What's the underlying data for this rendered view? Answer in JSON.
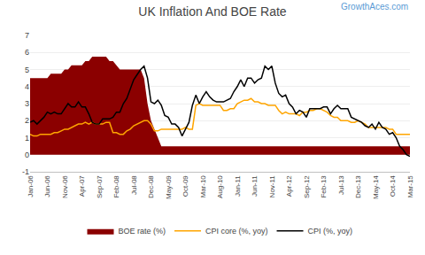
{
  "chart_data": {
    "type": "line",
    "title": "UK Inflation And BOE Rate",
    "annotations": [
      "GrowthAces.com"
    ],
    "categories": [
      "Jan-06",
      null,
      null,
      null,
      null,
      "Jun-06",
      null,
      null,
      null,
      null,
      "Nov-06",
      null,
      null,
      null,
      null,
      "Apr-07",
      null,
      null,
      null,
      null,
      "Sep-07",
      null,
      null,
      null,
      null,
      "Feb-08",
      null,
      null,
      null,
      null,
      "Jul-08",
      null,
      null,
      null,
      null,
      "Dec-08",
      null,
      null,
      null,
      null,
      "May-09",
      null,
      null,
      null,
      null,
      "Oct-09",
      null,
      null,
      null,
      null,
      "Mar-10",
      null,
      null,
      null,
      null,
      "Aug-10",
      null,
      null,
      null,
      null,
      "Jan-11",
      null,
      null,
      null,
      null,
      "Jun-11",
      null,
      null,
      null,
      null,
      "Nov-11",
      null,
      null,
      null,
      null,
      "Apr-12",
      null,
      null,
      null,
      null,
      "Sep-12",
      null,
      null,
      null,
      null,
      "Feb-13",
      null,
      null,
      null,
      null,
      "Jul-13",
      null,
      null,
      null,
      null,
      "Dec-13",
      null,
      null,
      null,
      null,
      "May-14",
      null,
      null,
      null,
      null,
      "Oct-14",
      null,
      null,
      null,
      null,
      "Mar-15"
    ],
    "series": [
      {
        "name": "BOE rate (%)",
        "type": "area",
        "color": "#8B0000",
        "values": [
          4.5,
          4.5,
          4.5,
          4.5,
          4.5,
          4.5,
          4.75,
          4.75,
          4.75,
          4.75,
          5.0,
          5.0,
          5.25,
          5.25,
          5.25,
          5.25,
          5.5,
          5.5,
          5.75,
          5.75,
          5.75,
          5.75,
          5.75,
          5.5,
          5.5,
          5.25,
          5.0,
          5.0,
          5.0,
          5.0,
          5.0,
          5.0,
          5.0,
          4.5,
          3.0,
          2.0,
          1.5,
          1.0,
          0.5,
          0.5,
          0.5,
          0.5,
          0.5,
          0.5,
          0.5,
          0.5,
          0.5,
          0.5,
          0.5,
          0.5,
          0.5,
          0.5,
          0.5,
          0.5,
          0.5,
          0.5,
          0.5,
          0.5,
          0.5,
          0.5,
          0.5,
          0.5,
          0.5,
          0.5,
          0.5,
          0.5,
          0.5,
          0.5,
          0.5,
          0.5,
          0.5,
          0.5,
          0.5,
          0.5,
          0.5,
          0.5,
          0.5,
          0.5,
          0.5,
          0.5,
          0.5,
          0.5,
          0.5,
          0.5,
          0.5,
          0.5,
          0.5,
          0.5,
          0.5,
          0.5,
          0.5,
          0.5,
          0.5,
          0.5,
          0.5,
          0.5,
          0.5,
          0.5,
          0.5,
          0.5,
          0.5,
          0.5,
          0.5,
          0.5,
          0.5,
          0.5,
          0.5,
          0.5,
          0.5,
          0.5,
          0.5
        ]
      },
      {
        "name": "CPI core (%, yoy)",
        "type": "line",
        "color": "#FFA500",
        "values": [
          1.2,
          1.1,
          1.1,
          1.2,
          1.2,
          1.2,
          1.2,
          1.3,
          1.3,
          1.4,
          1.5,
          1.5,
          1.6,
          1.7,
          1.8,
          1.8,
          1.9,
          1.8,
          1.9,
          1.8,
          1.8,
          1.8,
          1.9,
          1.9,
          1.3,
          1.3,
          1.2,
          1.2,
          1.4,
          1.5,
          1.7,
          1.8,
          1.9,
          2.0,
          2.0,
          1.8,
          1.4,
          1.4,
          1.5,
          1.5,
          1.5,
          1.5,
          1.5,
          1.5,
          1.5,
          1.6,
          1.5,
          1.5,
          2.9,
          3.0,
          2.9,
          2.9,
          2.9,
          2.9,
          2.9,
          2.9,
          2.6,
          2.6,
          2.7,
          2.7,
          3.0,
          3.1,
          3.2,
          3.2,
          3.3,
          3.1,
          3.1,
          3.0,
          3.0,
          2.9,
          2.9,
          2.9,
          2.6,
          2.4,
          2.5,
          2.4,
          2.4,
          2.4,
          2.3,
          2.5,
          2.5,
          2.6,
          2.6,
          2.7,
          2.7,
          2.6,
          2.5,
          2.3,
          2.2,
          2.2,
          2.0,
          2.0,
          2.0,
          1.9,
          1.9,
          2.0,
          1.9,
          1.8,
          1.6,
          1.6,
          1.6,
          1.6,
          1.6,
          1.6,
          1.5,
          1.5,
          1.2,
          1.2,
          1.2,
          1.2,
          1.2
        ]
      },
      {
        "name": "CPI (%, yoy)",
        "type": "line",
        "color": "#000000",
        "values": [
          1.9,
          2.0,
          1.8,
          2.0,
          2.2,
          2.5,
          2.4,
          2.5,
          2.4,
          2.4,
          2.7,
          3.0,
          2.8,
          2.8,
          3.1,
          2.8,
          2.8,
          2.4,
          1.9,
          1.8,
          1.8,
          2.1,
          2.1,
          2.1,
          2.2,
          2.5,
          2.5,
          3.0,
          3.3,
          3.8,
          4.4,
          4.7,
          5.0,
          5.2,
          4.5,
          3.1,
          3.0,
          3.2,
          2.9,
          2.3,
          2.2,
          1.8,
          1.8,
          1.6,
          1.1,
          1.5,
          1.9,
          2.9,
          3.5,
          3.0,
          3.4,
          3.7,
          3.4,
          3.2,
          3.1,
          3.1,
          3.1,
          3.2,
          3.3,
          3.7,
          4.0,
          4.4,
          4.0,
          4.5,
          4.5,
          4.2,
          4.4,
          4.5,
          5.2,
          5.0,
          5.2,
          4.2,
          3.6,
          3.4,
          3.5,
          3.0,
          2.8,
          2.4,
          2.6,
          2.5,
          2.2,
          2.7,
          2.7,
          2.7,
          2.7,
          2.8,
          2.8,
          2.4,
          2.7,
          2.9,
          2.7,
          2.7,
          2.7,
          2.2,
          2.1,
          2.0,
          1.9,
          1.7,
          1.6,
          1.8,
          1.5,
          1.9,
          1.6,
          1.5,
          1.2,
          1.3,
          1.0,
          0.5,
          0.3,
          0.0,
          -0.1
        ]
      }
    ],
    "ylim": [
      -1,
      7
    ],
    "yticks": [
      -1,
      0,
      1,
      2,
      3,
      4,
      5,
      6,
      7
    ],
    "grid": true,
    "legend": "bottom"
  }
}
